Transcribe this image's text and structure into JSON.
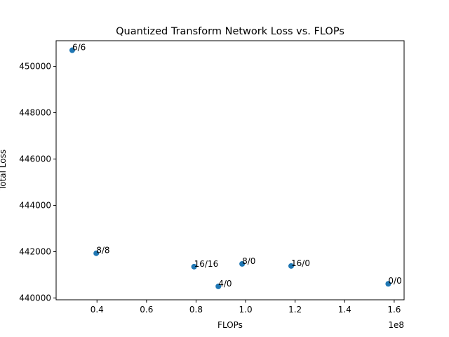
{
  "chart_data": {
    "type": "scatter",
    "title": "Quantized Transform Network Loss vs. FLOPs",
    "xlabel": "FLOPs",
    "ylabel": "Total Loss",
    "x_offset_label": "1e8",
    "x_scale_factor": 100000000,
    "xlim": [
      23500000,
      164000000
    ],
    "ylim": [
      439920,
      451110
    ],
    "x_ticks": [
      40000000,
      60000000,
      80000000,
      100000000,
      120000000,
      140000000,
      160000000
    ],
    "x_tick_labels": [
      "0.4",
      "0.6",
      "0.8",
      "1.0",
      "1.2",
      "1.4",
      "1.6"
    ],
    "y_ticks": [
      440000,
      442000,
      444000,
      446000,
      448000,
      450000
    ],
    "y_tick_labels": [
      "440000",
      "442000",
      "444000",
      "446000",
      "448000",
      "450000"
    ],
    "grid": false,
    "marker_color": "#1f77b4",
    "points": [
      {
        "label": "6/6",
        "x": 30000000,
        "y": 450700
      },
      {
        "label": "8/8",
        "x": 39700000,
        "y": 441930
      },
      {
        "label": "16/16",
        "x": 79200000,
        "y": 441350
      },
      {
        "label": "4/0",
        "x": 89000000,
        "y": 440500
      },
      {
        "label": "8/0",
        "x": 98600000,
        "y": 441470
      },
      {
        "label": "16/0",
        "x": 118400000,
        "y": 441380
      },
      {
        "label": "0/0",
        "x": 157600000,
        "y": 440610
      }
    ]
  }
}
